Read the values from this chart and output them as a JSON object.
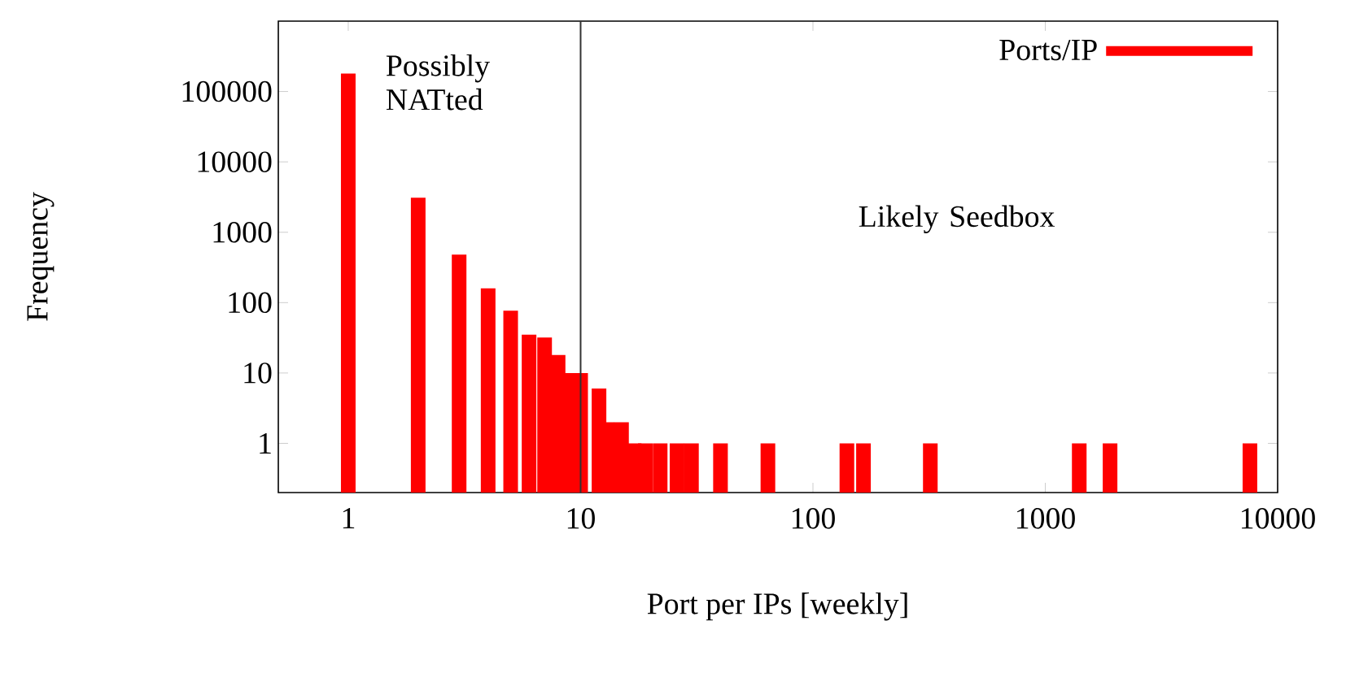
{
  "chart_data": {
    "type": "bar",
    "xlabel": "Port per IPs [weekly]",
    "ylabel": "Frequency",
    "x": [
      1,
      2,
      3,
      4,
      5,
      6,
      7,
      8,
      9,
      10,
      12,
      13,
      15,
      17,
      19,
      22,
      26,
      30,
      40,
      64,
      140,
      165,
      320,
      1400,
      1900,
      7600
    ],
    "series": [
      {
        "name": "Ports/IP",
        "color": "#ff0000",
        "values": [
          180000,
          3100,
          480,
          160,
          77,
          35,
          32,
          18,
          10,
          10,
          6,
          2,
          2,
          1,
          1,
          1,
          1,
          1,
          1,
          1,
          1,
          1,
          1,
          1,
          1,
          1
        ]
      }
    ],
    "xlim": [
      0.5,
      10000
    ],
    "ylim": [
      0.2,
      1000000
    ],
    "xticks": [
      1,
      10,
      100,
      1000,
      10000
    ],
    "yticks": [
      1,
      10,
      100,
      1000,
      10000,
      100000
    ],
    "log": "xy",
    "legend": "top right",
    "ref_lines": [
      {
        "axis": "x",
        "value": 10,
        "color": "#333333"
      }
    ],
    "annotations": [
      "Possibly NATted",
      "Likely Seedbox"
    ]
  }
}
